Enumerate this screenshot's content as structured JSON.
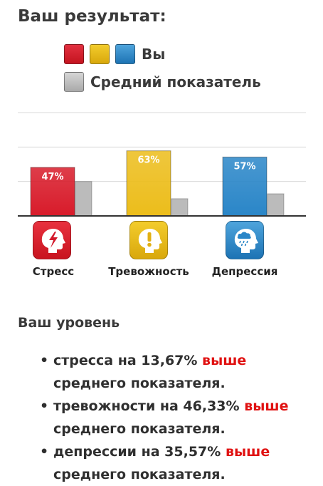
{
  "title": "Ваш результат:",
  "legend": {
    "you_label": "Вы",
    "avg_label": "Средний показатель",
    "you_colors": [
      "#d81b2a",
      "#ecbd1b",
      "#2a86c8"
    ],
    "avg_color": "#bbbbbb"
  },
  "chart_data": {
    "type": "bar",
    "categories": [
      "Стресс",
      "Тревожность",
      "Депрессия"
    ],
    "series": [
      {
        "name": "Вы",
        "values": [
          47,
          63,
          57
        ],
        "labels": [
          "47%",
          "63%",
          "57%"
        ],
        "colors": [
          "#d81b2a",
          "#ecbd1b",
          "#2a86c8"
        ]
      },
      {
        "name": "Средний показатель",
        "values": [
          33.33,
          16.67,
          21.43
        ],
        "color": "#bbbbbb"
      }
    ],
    "ylim": [
      0,
      100
    ],
    "grid": true,
    "legend_position": "top"
  },
  "icons": [
    "stress-icon",
    "anxiety-icon",
    "depression-icon"
  ],
  "level": {
    "heading": "Ваш уровень",
    "bullet_glyph": "•",
    "items": [
      {
        "text": "стресса на 13,67% ",
        "highlight": "выше",
        "tail": " среднего показателя."
      },
      {
        "text": "тревожности на 46,33% ",
        "highlight": "выше",
        "tail": " среднего показателя."
      },
      {
        "text": "депрессии на 35,57% ",
        "highlight": "выше",
        "tail": " среднего показателя."
      }
    ],
    "highlight_color": "#e01111"
  }
}
